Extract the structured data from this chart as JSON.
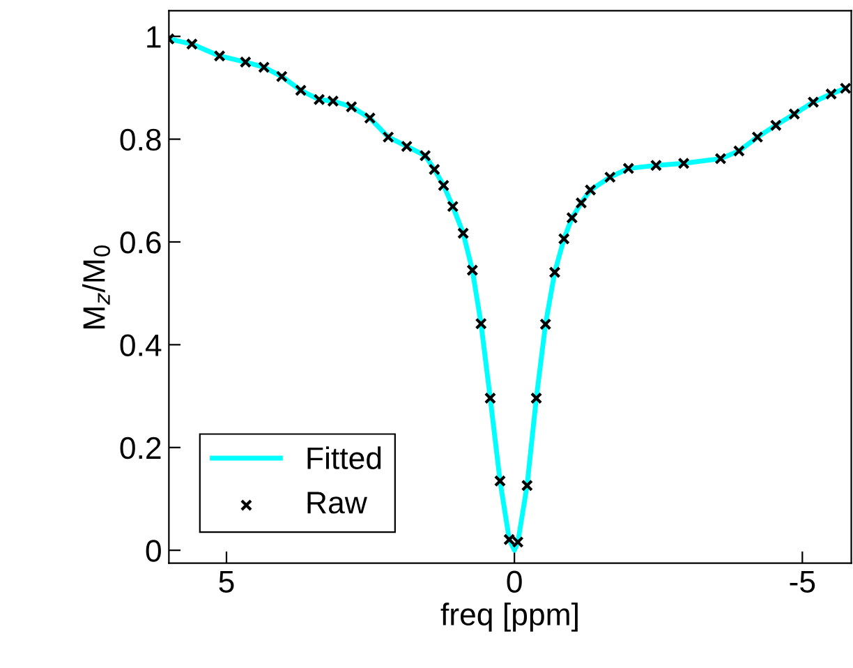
{
  "chart_data": {
    "type": "line",
    "xlabel": "freq [ppm]",
    "ylabel": "M$_{z}$/M$_{0}$",
    "xlim": [
      6,
      -5.85
    ],
    "xticks": [
      5,
      0,
      {
        "value": -5,
        "label": "-5"
      }
    ],
    "ylim": [
      -0.025,
      1.05
    ],
    "yticks": [
      0,
      0.2,
      0.4,
      0.6,
      0.8,
      1
    ],
    "grid": false,
    "legend": "bottom left",
    "series": [
      {
        "name": "Fitted",
        "color": "#00ffff",
        "x": [
          6.0,
          5.6,
          5.12,
          4.67,
          4.35,
          4.04,
          3.71,
          3.39,
          3.15,
          2.83,
          2.51,
          2.19,
          1.87,
          1.55,
          1.39,
          1.23,
          1.07,
          0.89,
          0.73,
          0.58,
          0.42,
          0.25,
          0.09,
          0,
          -0.06,
          -0.22,
          -0.38,
          -0.54,
          -0.7,
          -0.86,
          -1.0,
          -1.16,
          -1.32,
          -1.66,
          -1.98,
          -2.46,
          -2.94,
          -3.58,
          -3.9,
          -4.22,
          -4.54,
          -4.86,
          -5.19,
          -5.5,
          -5.75
        ],
        "values": [
          0.995,
          0.985,
          0.962,
          0.95,
          0.94,
          0.922,
          0.895,
          0.877,
          0.874,
          0.863,
          0.841,
          0.804,
          0.786,
          0.768,
          0.741,
          0.71,
          0.669,
          0.617,
          0.545,
          0.441,
          0.296,
          0.135,
          0.021,
          0.0,
          0.016,
          0.126,
          0.296,
          0.44,
          0.541,
          0.606,
          0.647,
          0.676,
          0.701,
          0.726,
          0.743,
          0.749,
          0.753,
          0.762,
          0.777,
          0.804,
          0.827,
          0.849,
          0.872,
          0.888,
          0.899
        ]
      },
      {
        "name": "Raw",
        "type": "scatter",
        "color": "#000000",
        "marker": "cross",
        "x": [
          6.0,
          5.6,
          5.12,
          4.67,
          4.35,
          4.04,
          3.71,
          3.39,
          3.15,
          2.83,
          2.51,
          2.19,
          1.87,
          1.55,
          1.39,
          1.23,
          1.07,
          0.89,
          0.73,
          0.58,
          0.42,
          0.25,
          0.09,
          -0.06,
          -0.22,
          -0.38,
          -0.54,
          -0.7,
          -0.86,
          -1.0,
          -1.16,
          -1.32,
          -1.66,
          -1.98,
          -2.46,
          -2.94,
          -3.58,
          -3.9,
          -4.22,
          -4.54,
          -4.86,
          -5.19,
          -5.5,
          -5.75
        ],
        "values": [
          0.995,
          0.985,
          0.962,
          0.95,
          0.94,
          0.922,
          0.895,
          0.877,
          0.874,
          0.863,
          0.841,
          0.804,
          0.786,
          0.768,
          0.741,
          0.71,
          0.669,
          0.617,
          0.545,
          0.441,
          0.296,
          0.135,
          0.021,
          0.016,
          0.126,
          0.296,
          0.44,
          0.541,
          0.606,
          0.647,
          0.676,
          0.701,
          0.726,
          0.743,
          0.749,
          0.753,
          0.762,
          0.777,
          0.804,
          0.827,
          0.849,
          0.872,
          0.888,
          0.899
        ]
      }
    ]
  }
}
